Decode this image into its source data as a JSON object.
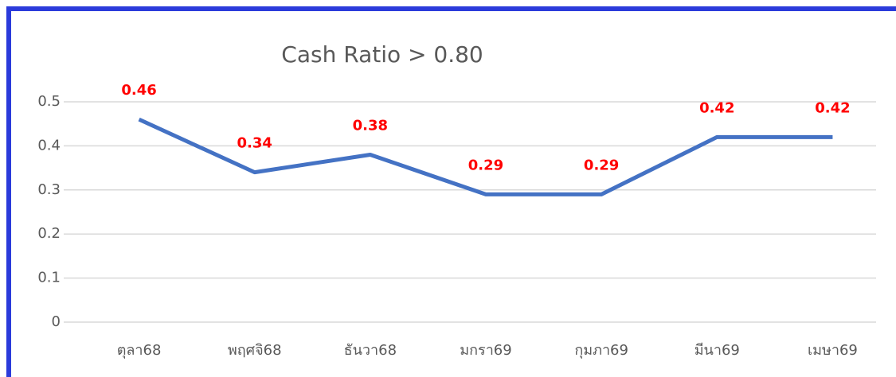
{
  "chart_data": {
    "type": "line",
    "title": "Cash Ratio > 0.80",
    "categories": [
      "ตุลา68",
      "พฤศจิ68",
      "ธันวา68",
      "มกรา69",
      "กุมภา69",
      "มีนา69",
      "เมษา69"
    ],
    "series": [
      {
        "name": "Cash Ratio",
        "color": "#4472c4",
        "values": [
          0.46,
          0.34,
          0.38,
          0.29,
          0.29,
          0.42,
          0.42
        ]
      }
    ],
    "ylim": [
      0,
      0.5
    ],
    "yticks": [
      0,
      0.1,
      0.2,
      0.3,
      0.4,
      0.5
    ],
    "grid": true,
    "value_label_color": "#ff0000"
  }
}
